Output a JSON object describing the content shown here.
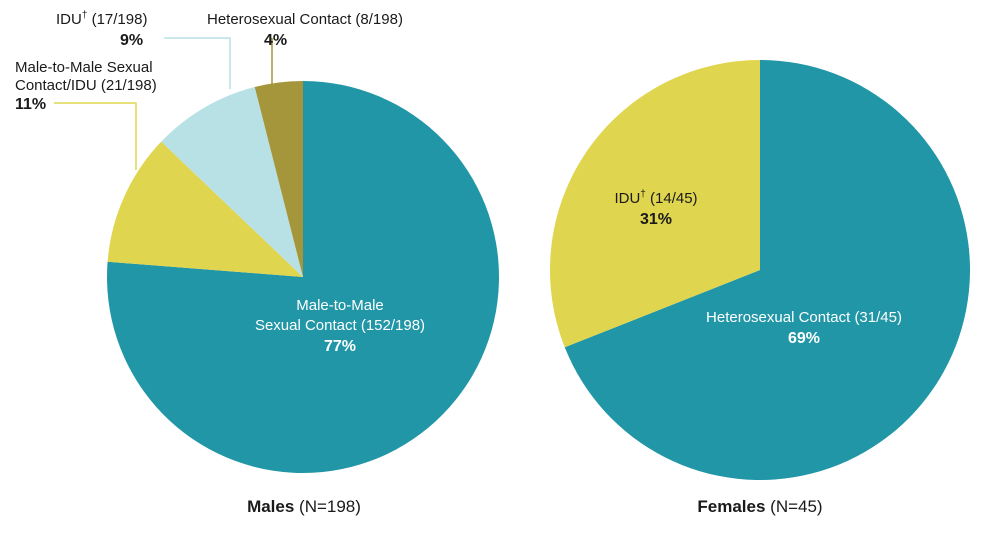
{
  "chart_data": [
    {
      "type": "pie",
      "caption_bold": "Males",
      "caption_normal": " (N=198)",
      "slices": [
        {
          "label": "Male-to-Male Sexual Contact",
          "count": "(152/198)",
          "percent": "77%",
          "value": 77,
          "color": "#2196a6"
        },
        {
          "label": "Male-to-Male Sexual Contact/IDU",
          "count": "(21/198)",
          "percent": "11%",
          "value": 11,
          "color": "#e0d54e"
        },
        {
          "label": "IDU†",
          "count": "(17/198)",
          "percent": "9%",
          "value": 9,
          "color": "#b8e1e6"
        },
        {
          "label": "Heterosexual Contact",
          "count": "(8/198)",
          "percent": "4%",
          "value": 4,
          "color": "#a6963b"
        }
      ]
    },
    {
      "type": "pie",
      "caption_bold": "Females",
      "caption_normal": " (N=45)",
      "slices": [
        {
          "label": "Heterosexual Contact",
          "count": "(31/45)",
          "percent": "69%",
          "value": 69,
          "color": "#2196a6"
        },
        {
          "label": "IDU†",
          "count": "(14/45)",
          "percent": "31%",
          "value": 31,
          "color": "#e0d54e"
        }
      ]
    }
  ],
  "labels": {
    "males": {
      "mm_line1": "Male-to-Male",
      "mm_line2": "Sexual Contact (152/198)",
      "mm_pct": "77%",
      "mmidu_line1": "Male-to-Male Sexual",
      "mmidu_line2": "Contact/IDU (21/198)",
      "mmidu_pct": "11%",
      "idu_name": "IDU",
      "idu_dagger": "†",
      "idu_count": " (17/198)",
      "idu_pct": "9%",
      "het_line1": "Heterosexual Contact (8/198)",
      "het_pct": "4%"
    },
    "females": {
      "idu_name": "IDU",
      "idu_dagger": "†",
      "idu_count": " (14/45)",
      "idu_pct": "31%",
      "het_line1": "Heterosexual Contact (31/45)",
      "het_pct": "69%"
    }
  }
}
